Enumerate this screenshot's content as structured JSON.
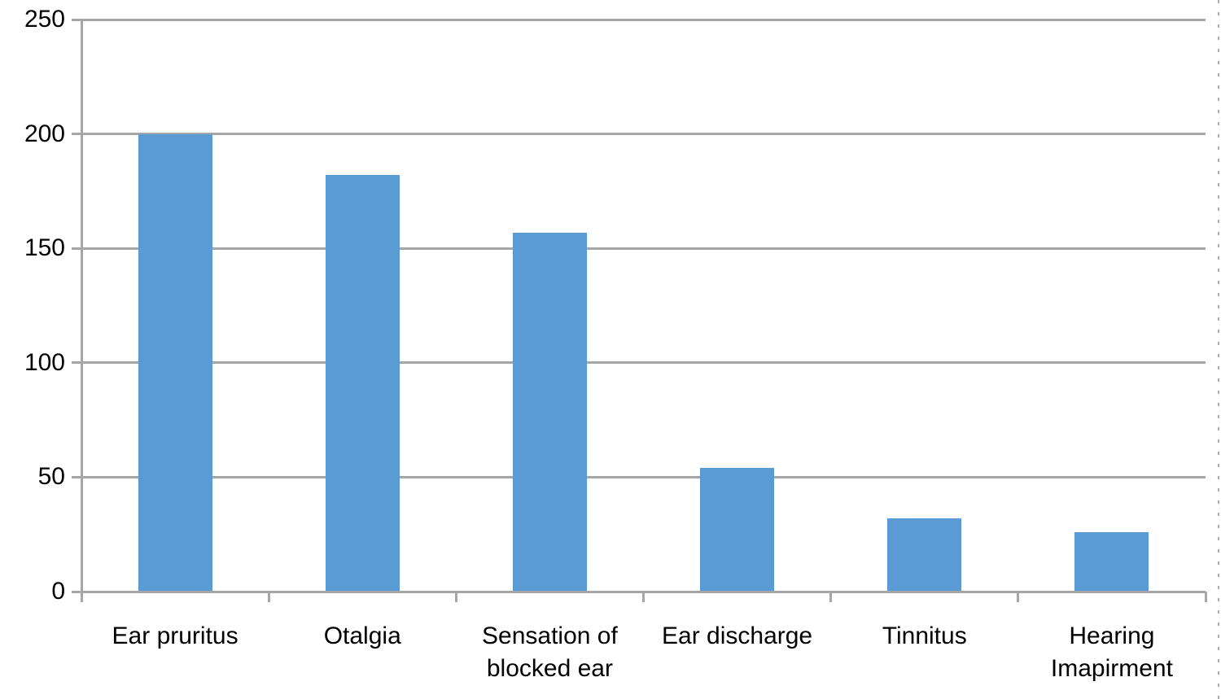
{
  "chart_data": {
    "type": "bar",
    "categories": [
      "Ear pruritus",
      "Otalgia",
      "Sensation of blocked ear",
      "Ear discharge",
      "Tinnitus",
      "Hearing Imapirment"
    ],
    "values": [
      200,
      182,
      157,
      54,
      32,
      26
    ],
    "title": "",
    "xlabel": "",
    "ylabel": "",
    "ylim": [
      0,
      250
    ],
    "ytick_interval": 50,
    "yticks": [
      0,
      50,
      100,
      150,
      200,
      250
    ],
    "grid": true,
    "legend": "none",
    "colors": {
      "bar": "#5B9BD5",
      "gridline": "#A6A6A6",
      "axis": "#A6A6A6",
      "background": "#FFFFFF",
      "text": "#000000"
    }
  }
}
